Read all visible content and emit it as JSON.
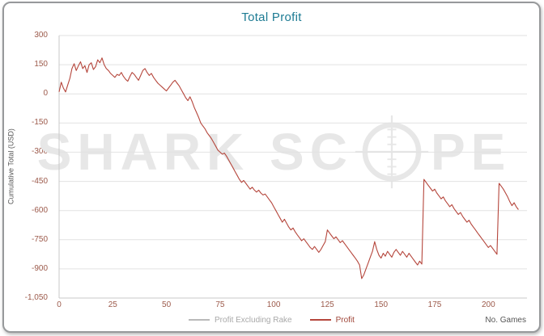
{
  "window": {
    "title": "Total Profit"
  },
  "axes": {
    "y_title": "Cumulative Total (USD)",
    "x_title": "No. Games"
  },
  "watermark": {
    "left": "SHARK SC",
    "right": "PE"
  },
  "legend": [
    {
      "label": "Profit Excluding Rake",
      "line_color": "#b9b9b9",
      "text_color": "#a9a9a9"
    },
    {
      "label": "Profit",
      "line_color": "#b5463c",
      "text_color": "#a0473a"
    }
  ],
  "colors": {
    "title": "#1d7b93",
    "tick_labels": "#9c5a4b",
    "grid": "#e2e2e2",
    "axis": "#c8c8c8",
    "watermark": "#e7e7e7",
    "profit_line": "#b5463c"
  },
  "chart_data": {
    "type": "line",
    "title": "Total Profit",
    "xlabel": "No. Games",
    "ylabel": "Cumulative Total (USD)",
    "xlim": [
      0,
      218
    ],
    "ylim": [
      -1050,
      300
    ],
    "xticks": [
      0,
      25,
      50,
      75,
      100,
      125,
      150,
      175,
      200
    ],
    "yticks": [
      300,
      150,
      0,
      -150,
      -300,
      -450,
      -600,
      -750,
      -900,
      -1050
    ],
    "grid": "horizontal",
    "legend_position": "bottom",
    "series": [
      {
        "name": "Profit Excluding Rake",
        "color": "#b9b9b9",
        "points": []
      },
      {
        "name": "Profit",
        "color": "#b5463c",
        "points": [
          [
            0,
            10
          ],
          [
            1,
            60
          ],
          [
            2,
            30
          ],
          [
            3,
            10
          ],
          [
            4,
            45
          ],
          [
            5,
            80
          ],
          [
            6,
            130
          ],
          [
            7,
            155
          ],
          [
            8,
            120
          ],
          [
            9,
            145
          ],
          [
            10,
            165
          ],
          [
            11,
            130
          ],
          [
            12,
            145
          ],
          [
            13,
            110
          ],
          [
            14,
            150
          ],
          [
            15,
            160
          ],
          [
            16,
            125
          ],
          [
            17,
            140
          ],
          [
            18,
            175
          ],
          [
            19,
            160
          ],
          [
            20,
            185
          ],
          [
            21,
            150
          ],
          [
            22,
            130
          ],
          [
            23,
            120
          ],
          [
            24,
            105
          ],
          [
            25,
            95
          ],
          [
            26,
            85
          ],
          [
            27,
            100
          ],
          [
            28,
            95
          ],
          [
            29,
            110
          ],
          [
            30,
            90
          ],
          [
            31,
            75
          ],
          [
            32,
            65
          ],
          [
            33,
            90
          ],
          [
            34,
            110
          ],
          [
            35,
            100
          ],
          [
            36,
            85
          ],
          [
            37,
            70
          ],
          [
            38,
            95
          ],
          [
            39,
            120
          ],
          [
            40,
            130
          ],
          [
            41,
            110
          ],
          [
            42,
            95
          ],
          [
            43,
            105
          ],
          [
            44,
            85
          ],
          [
            45,
            70
          ],
          [
            46,
            55
          ],
          [
            47,
            45
          ],
          [
            48,
            35
          ],
          [
            49,
            25
          ],
          [
            50,
            15
          ],
          [
            51,
            30
          ],
          [
            52,
            45
          ],
          [
            53,
            60
          ],
          [
            54,
            70
          ],
          [
            55,
            55
          ],
          [
            56,
            40
          ],
          [
            57,
            20
          ],
          [
            58,
            0
          ],
          [
            59,
            -20
          ],
          [
            60,
            -35
          ],
          [
            61,
            -15
          ],
          [
            62,
            -40
          ],
          [
            63,
            -70
          ],
          [
            64,
            -95
          ],
          [
            65,
            -120
          ],
          [
            66,
            -150
          ],
          [
            67,
            -165
          ],
          [
            68,
            -180
          ],
          [
            69,
            -200
          ],
          [
            70,
            -215
          ],
          [
            71,
            -230
          ],
          [
            72,
            -250
          ],
          [
            73,
            -270
          ],
          [
            74,
            -290
          ],
          [
            75,
            -300
          ],
          [
            76,
            -310
          ],
          [
            77,
            -305
          ],
          [
            78,
            -320
          ],
          [
            79,
            -340
          ],
          [
            80,
            -360
          ],
          [
            81,
            -380
          ],
          [
            82,
            -400
          ],
          [
            83,
            -420
          ],
          [
            84,
            -440
          ],
          [
            85,
            -455
          ],
          [
            86,
            -445
          ],
          [
            87,
            -460
          ],
          [
            88,
            -475
          ],
          [
            89,
            -490
          ],
          [
            90,
            -480
          ],
          [
            91,
            -495
          ],
          [
            92,
            -505
          ],
          [
            93,
            -495
          ],
          [
            94,
            -510
          ],
          [
            95,
            -520
          ],
          [
            96,
            -515
          ],
          [
            97,
            -530
          ],
          [
            98,
            -545
          ],
          [
            99,
            -560
          ],
          [
            100,
            -580
          ],
          [
            101,
            -600
          ],
          [
            102,
            -620
          ],
          [
            103,
            -640
          ],
          [
            104,
            -660
          ],
          [
            105,
            -645
          ],
          [
            106,
            -665
          ],
          [
            107,
            -685
          ],
          [
            108,
            -700
          ],
          [
            109,
            -690
          ],
          [
            110,
            -710
          ],
          [
            111,
            -725
          ],
          [
            112,
            -740
          ],
          [
            113,
            -755
          ],
          [
            114,
            -745
          ],
          [
            115,
            -760
          ],
          [
            116,
            -775
          ],
          [
            117,
            -790
          ],
          [
            118,
            -800
          ],
          [
            119,
            -785
          ],
          [
            120,
            -800
          ],
          [
            121,
            -815
          ],
          [
            122,
            -800
          ],
          [
            123,
            -780
          ],
          [
            124,
            -760
          ],
          [
            125,
            -700
          ],
          [
            126,
            -715
          ],
          [
            127,
            -730
          ],
          [
            128,
            -745
          ],
          [
            129,
            -735
          ],
          [
            130,
            -750
          ],
          [
            131,
            -765
          ],
          [
            132,
            -755
          ],
          [
            133,
            -770
          ],
          [
            134,
            -785
          ],
          [
            135,
            -800
          ],
          [
            136,
            -815
          ],
          [
            137,
            -830
          ],
          [
            138,
            -845
          ],
          [
            139,
            -860
          ],
          [
            140,
            -880
          ],
          [
            141,
            -950
          ],
          [
            142,
            -930
          ],
          [
            143,
            -900
          ],
          [
            144,
            -870
          ],
          [
            145,
            -840
          ],
          [
            146,
            -810
          ],
          [
            147,
            -760
          ],
          [
            148,
            -800
          ],
          [
            149,
            -830
          ],
          [
            150,
            -845
          ],
          [
            151,
            -820
          ],
          [
            152,
            -835
          ],
          [
            153,
            -810
          ],
          [
            154,
            -825
          ],
          [
            155,
            -840
          ],
          [
            156,
            -815
          ],
          [
            157,
            -800
          ],
          [
            158,
            -815
          ],
          [
            159,
            -830
          ],
          [
            160,
            -810
          ],
          [
            161,
            -825
          ],
          [
            162,
            -840
          ],
          [
            163,
            -820
          ],
          [
            164,
            -835
          ],
          [
            165,
            -850
          ],
          [
            166,
            -865
          ],
          [
            167,
            -880
          ],
          [
            168,
            -860
          ],
          [
            169,
            -875
          ],
          [
            170,
            -440
          ],
          [
            171,
            -455
          ],
          [
            172,
            -470
          ],
          [
            173,
            -485
          ],
          [
            174,
            -500
          ],
          [
            175,
            -490
          ],
          [
            176,
            -510
          ],
          [
            177,
            -525
          ],
          [
            178,
            -540
          ],
          [
            179,
            -530
          ],
          [
            180,
            -550
          ],
          [
            181,
            -565
          ],
          [
            182,
            -580
          ],
          [
            183,
            -570
          ],
          [
            184,
            -590
          ],
          [
            185,
            -605
          ],
          [
            186,
            -620
          ],
          [
            187,
            -610
          ],
          [
            188,
            -630
          ],
          [
            189,
            -645
          ],
          [
            190,
            -660
          ],
          [
            191,
            -650
          ],
          [
            192,
            -670
          ],
          [
            193,
            -685
          ],
          [
            194,
            -700
          ],
          [
            195,
            -715
          ],
          [
            196,
            -730
          ],
          [
            197,
            -745
          ],
          [
            198,
            -760
          ],
          [
            199,
            -775
          ],
          [
            200,
            -790
          ],
          [
            201,
            -780
          ],
          [
            202,
            -795
          ],
          [
            203,
            -810
          ],
          [
            204,
            -825
          ],
          [
            205,
            -460
          ],
          [
            206,
            -475
          ],
          [
            207,
            -490
          ],
          [
            208,
            -510
          ],
          [
            209,
            -530
          ],
          [
            210,
            -555
          ],
          [
            211,
            -575
          ],
          [
            212,
            -560
          ],
          [
            213,
            -580
          ],
          [
            214,
            -595
          ]
        ]
      }
    ]
  }
}
